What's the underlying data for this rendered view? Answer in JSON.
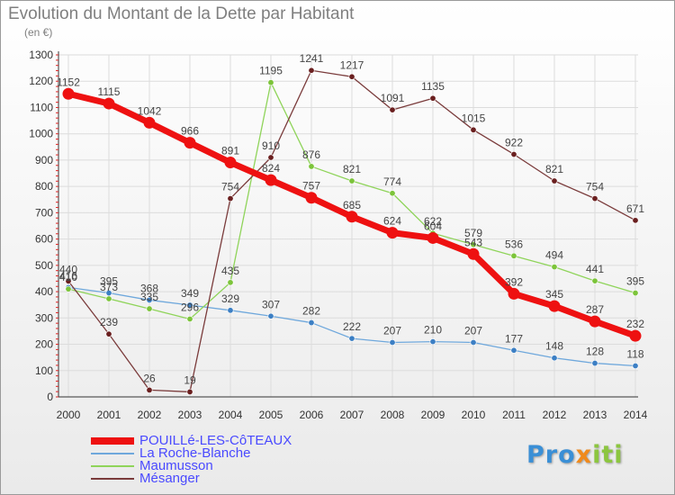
{
  "title": "Evolution du Montant de la Dette par Habitant",
  "unit": "(en €)",
  "logo": {
    "parts": [
      "Pro",
      "x",
      "iti"
    ],
    "colors": [
      "#3a8fd6",
      "#f08a1c",
      "#8cc63f"
    ]
  },
  "chart_data": {
    "type": "line",
    "title": "Evolution du Montant de la Dette par Habitant",
    "ylabel": "(en €)",
    "ylim": [
      0,
      1300
    ],
    "yticks": [
      0,
      100,
      200,
      300,
      400,
      500,
      600,
      700,
      800,
      900,
      1000,
      1100,
      1200,
      1300
    ],
    "x": [
      "2000",
      "2001",
      "2002",
      "2003",
      "2004",
      "2005",
      "2006",
      "2007",
      "2008",
      "2009",
      "2010",
      "2011",
      "2012",
      "2013",
      "2014"
    ],
    "grid": true,
    "legend_position": "bottom-left",
    "series": [
      {
        "name": "La Roche-Blanche",
        "color": "#6fa8dc",
        "marker": "#3c7fc4",
        "width": 1.3,
        "values": [
          416,
          395,
          368,
          349,
          329,
          307,
          282,
          222,
          207,
          210,
          207,
          177,
          148,
          128,
          118
        ],
        "labels": [
          "416",
          "395",
          "368",
          "349",
          "329",
          "307",
          "282",
          "222",
          "207",
          "210",
          "207",
          "177",
          "148",
          "128",
          "118"
        ]
      },
      {
        "name": "Maumusson",
        "color": "#8fd45a",
        "marker": "#7cc43a",
        "width": 1.3,
        "values": [
          410,
          373,
          335,
          296,
          435,
          1195,
          876,
          821,
          774,
          622,
          579,
          536,
          494,
          441,
          395
        ],
        "labels": [
          "410",
          "373",
          "335",
          "296",
          "435",
          "1195",
          "876",
          "821",
          "774",
          "622",
          "579",
          "536",
          "494",
          "441",
          "395"
        ]
      },
      {
        "name": "Mésanger",
        "color": "#7a3b3b",
        "marker": "#6a1f1f",
        "width": 1.3,
        "values": [
          440,
          239,
          26,
          19,
          754,
          910,
          1241,
          1217,
          1091,
          1135,
          1015,
          922,
          821,
          754,
          671
        ],
        "labels": [
          "440",
          "239",
          "26",
          "19",
          "754",
          "910",
          "1241",
          "1217",
          "1091",
          "1135",
          "1015",
          "922",
          "821",
          "754",
          "671"
        ]
      },
      {
        "name": "POUILLé-LES-CôTEAUX",
        "color": "#ee1111",
        "marker": "#ee1111",
        "width": 7,
        "values": [
          1152,
          1115,
          1042,
          966,
          891,
          824,
          757,
          685,
          624,
          604,
          543,
          392,
          345,
          287,
          232
        ],
        "labels": [
          "1152",
          "1115",
          "1042",
          "966",
          "891",
          "824",
          "757",
          "685",
          "624",
          "604",
          "543",
          "392",
          "345",
          "287",
          "232"
        ]
      }
    ],
    "legend_order": [
      "POUILLé-LES-CôTEAUX",
      "La Roche-Blanche",
      "Maumusson",
      "Mésanger"
    ]
  }
}
